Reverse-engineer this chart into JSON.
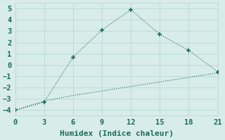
{
  "line1_x": [
    0,
    3,
    6,
    9,
    12,
    15,
    18,
    21
  ],
  "line1_y": [
    -4.0,
    -3.3,
    0.7,
    3.1,
    4.9,
    2.7,
    1.3,
    -0.6
  ],
  "line2_x": [
    0,
    3,
    6,
    9,
    12,
    15,
    18,
    21
  ],
  "line2_y": [
    -4.0,
    -3.2,
    -2.7,
    -2.3,
    -1.9,
    -1.5,
    -1.1,
    -0.7
  ],
  "line_color": "#1a6b5a",
  "background_color": "#d8ecea",
  "grid_color": "#b8d8d4",
  "xlabel": "Humidex (Indice chaleur)",
  "xlim": [
    0,
    21
  ],
  "ylim": [
    -4.5,
    5.5
  ],
  "xticks": [
    0,
    3,
    6,
    9,
    12,
    15,
    18,
    21
  ],
  "yticks": [
    -4,
    -3,
    -2,
    -1,
    0,
    1,
    2,
    3,
    4,
    5
  ],
  "xlabel_fontsize": 8,
  "tick_fontsize": 7.5
}
